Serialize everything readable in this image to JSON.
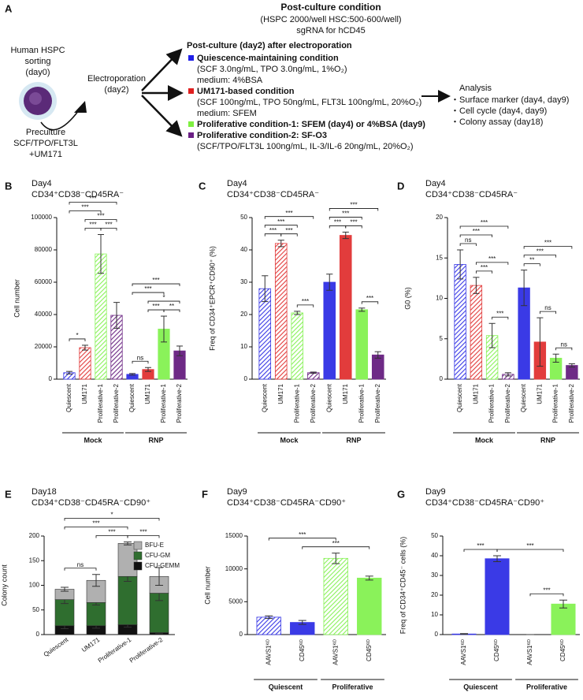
{
  "panel_a": {
    "label": "A",
    "header": [
      "Post-culture condition",
      "(HSPC 2000/well HSC:500-600/well)",
      "sgRNA for hCD45"
    ],
    "sorting": [
      "Human HSPC",
      "sorting",
      "(day0)"
    ],
    "electroporation": [
      "Electroporation",
      "(day2)"
    ],
    "preculture": [
      "Preculture",
      "SCF/TPO/FLT3L",
      "+UM171"
    ],
    "conditions_title": "Post-culture (day2) after electroporation",
    "conditions": [
      {
        "name": "Quiescence-maintaining condition",
        "color": "#2020e8",
        "details": [
          "(SCF 3.0ng/mL, TPO 3.0ng/mL, 1%O₂)",
          "medium: 4%BSA"
        ]
      },
      {
        "name": "UM171-based condition",
        "color": "#e02020",
        "details": [
          "(SCF 100ng/mL, TPO 50ng/mL, FLT3L 100ng/mL, 20%O₂)",
          "medium: SFEM"
        ]
      },
      {
        "name": "Proliferative condition-1: SFEM (day4) or 4%BSA (day9)",
        "color": "#7ef040"
      },
      {
        "name": "Proliferative condition-2: SF-O3",
        "color": "#6a1f84",
        "details": [
          "(SCF/TPO/FLT3L 100ng/mL, IL-3/IL-6 20ng/mL, 20%O₂)"
        ]
      }
    ],
    "analysis_title": "Analysis",
    "analysis": [
      "・Surface marker (day4, day9)",
      "・Cell cycle (day4, day9)",
      "・Colony assay (day18)"
    ]
  },
  "chart_data": [
    {
      "type": "bar",
      "panel": "B",
      "title": "Day4",
      "subtitle": "CD34⁺CD38⁻CD45RA⁻",
      "ylabel": "Cell number",
      "categories": [
        "Quiescent",
        "UM171",
        "Proliferative-1",
        "Proliferative-2",
        "Quiescent",
        "UM171",
        "Proliferative-1",
        "Proliferative-2"
      ],
      "values": [
        4000,
        19500,
        77500,
        39500,
        3000,
        6000,
        31000,
        17500
      ],
      "errors": [
        800,
        1500,
        12000,
        8000,
        500,
        1200,
        8000,
        3000
      ],
      "colors": [
        "#3a3ae6",
        "#e23c3c",
        "#8af25a",
        "#6e2a86",
        "#3a3ae6",
        "#e23c3c",
        "#8af25a",
        "#6e2a86"
      ],
      "hatch": [
        true,
        true,
        true,
        true,
        false,
        false,
        false,
        false
      ],
      "ylim": [
        0,
        100000
      ],
      "yticks": [
        0,
        20000,
        40000,
        60000,
        80000,
        100000
      ],
      "groups": [
        {
          "name": "Mock",
          "from": 0,
          "to": 3
        },
        {
          "name": "RNP",
          "from": 4,
          "to": 7
        }
      ],
      "brackets": [
        {
          "from": 0,
          "to": 1,
          "label": "*"
        },
        {
          "from": 1,
          "to": 2,
          "label": "***"
        },
        {
          "from": 2,
          "to": 3,
          "label": "***"
        },
        {
          "from": 1,
          "to": 3,
          "label": "***"
        },
        {
          "from": 0,
          "to": 2,
          "label": "***"
        },
        {
          "from": 0,
          "to": 3,
          "label": "***"
        },
        {
          "from": 4,
          "to": 5,
          "label": "ns"
        },
        {
          "from": 5,
          "to": 6,
          "label": "***"
        },
        {
          "from": 6,
          "to": 7,
          "label": "**"
        },
        {
          "from": 5,
          "to": 7,
          "label": "*"
        },
        {
          "from": 4,
          "to": 6,
          "label": "***"
        },
        {
          "from": 4,
          "to": 7,
          "label": "***"
        }
      ]
    },
    {
      "type": "bar",
      "panel": "C",
      "title": "Day4",
      "subtitle": "CD34⁺CD38⁻CD45RA⁻",
      "ylabel": "Freq of CD34⁺EPCR⁺CD90⁺ (%)",
      "categories": [
        "Quiescent",
        "UM171",
        "Proliferative-1",
        "Proliferative-2",
        "Quiescent",
        "UM171",
        "Proliferative-1",
        "Proliferative-2"
      ],
      "values": [
        28,
        42,
        20.5,
        2,
        30,
        44.5,
        21.5,
        7.5
      ],
      "errors": [
        4,
        1,
        0.5,
        0.2,
        2.5,
        1,
        0.5,
        1
      ],
      "colors": [
        "#3a3ae6",
        "#e23c3c",
        "#8af25a",
        "#6e2a86",
        "#3a3ae6",
        "#e23c3c",
        "#8af25a",
        "#6e2a86"
      ],
      "hatch": [
        true,
        true,
        true,
        true,
        false,
        false,
        false,
        false
      ],
      "ylim": [
        0,
        50
      ],
      "yticks": [
        0,
        10,
        20,
        30,
        40,
        50
      ],
      "groups": [
        {
          "name": "Mock",
          "from": 0,
          "to": 3
        },
        {
          "name": "RNP",
          "from": 4,
          "to": 7
        }
      ],
      "brackets": [
        {
          "from": 2,
          "to": 3,
          "label": "***"
        },
        {
          "from": 0,
          "to": 1,
          "label": "***"
        },
        {
          "from": 1,
          "to": 2,
          "label": "***"
        },
        {
          "from": 0,
          "to": 2,
          "label": "***"
        },
        {
          "from": 0,
          "to": 3,
          "label": "***"
        },
        {
          "from": 6,
          "to": 7,
          "label": "***"
        },
        {
          "from": 4,
          "to": 5,
          "label": "***"
        },
        {
          "from": 5,
          "to": 6,
          "label": "***"
        },
        {
          "from": 4,
          "to": 6,
          "label": "***"
        },
        {
          "from": 4,
          "to": 7,
          "label": "***"
        }
      ]
    },
    {
      "type": "bar",
      "panel": "D",
      "title": "Day4",
      "subtitle": "CD34⁺CD38⁻CD45RA⁻",
      "ylabel": "G0 (%)",
      "categories": [
        "Quiescent",
        "UM171",
        "Proliferative-1",
        "Proliferative-2",
        "Quiescent",
        "UM171",
        "Proliferative-1",
        "Proliferative-2"
      ],
      "values": [
        14.2,
        11.6,
        5.4,
        0.6,
        11.3,
        4.6,
        2.6,
        1.7
      ],
      "errors": [
        1.8,
        1,
        1.5,
        0.2,
        2.2,
        3,
        0.5,
        0.2
      ],
      "colors": [
        "#3a3ae6",
        "#e23c3c",
        "#8af25a",
        "#6e2a86",
        "#3a3ae6",
        "#e23c3c",
        "#8af25a",
        "#6e2a86"
      ],
      "hatch": [
        true,
        true,
        true,
        true,
        false,
        false,
        false,
        false
      ],
      "ylim": [
        0,
        20
      ],
      "yticks": [
        0,
        5,
        10,
        15,
        20
      ],
      "groups": [
        {
          "name": "Mock",
          "from": 0,
          "to": 3
        },
        {
          "name": "RNP",
          "from": 4,
          "to": 7
        }
      ],
      "brackets": [
        {
          "from": 2,
          "to": 3,
          "label": "***"
        },
        {
          "from": 1,
          "to": 2,
          "label": "***"
        },
        {
          "from": 1,
          "to": 3,
          "label": "***"
        },
        {
          "from": 0,
          "to": 1,
          "label": "ns"
        },
        {
          "from": 0,
          "to": 2,
          "label": "***"
        },
        {
          "from": 0,
          "to": 3,
          "label": "***"
        },
        {
          "from": 6,
          "to": 7,
          "label": "ns"
        },
        {
          "from": 5,
          "to": 6,
          "label": "ns"
        },
        {
          "from": 4,
          "to": 5,
          "label": "**"
        },
        {
          "from": 4,
          "to": 6,
          "label": "***"
        },
        {
          "from": 4,
          "to": 7,
          "label": "***"
        }
      ]
    },
    {
      "type": "stacked_bar",
      "panel": "E",
      "title": "Day18",
      "subtitle": "CD34⁺CD38⁻CD45RA⁻CD90⁺",
      "ylabel": "Colony count",
      "categories": [
        "Quiescent",
        "UM171",
        "Proliferative-1",
        "Proliferative-2"
      ],
      "series": [
        {
          "name": "CFU-GEMM",
          "color": "#111111",
          "values": [
            18,
            18,
            20,
            4
          ],
          "errors": [
            6,
            5,
            5,
            2
          ]
        },
        {
          "name": "CFU-GM",
          "color": "#2f6e2f",
          "values": [
            53,
            47,
            98,
            80
          ],
          "errors": [
            8,
            5,
            10,
            15
          ]
        },
        {
          "name": "BFU-E",
          "color": "#b0b0b0",
          "values": [
            21,
            45,
            67,
            34
          ],
          "errors": [
            4,
            12,
            3,
            18
          ]
        }
      ],
      "ylim": [
        0,
        200
      ],
      "yticks": [
        0,
        50,
        100,
        150,
        200
      ],
      "legend": "upper right",
      "brackets": [
        {
          "from": 0,
          "to": 1,
          "label": "ns"
        },
        {
          "from": 1,
          "to": 2,
          "label": "***"
        },
        {
          "from": 2,
          "to": 3,
          "label": "***"
        },
        {
          "from": 0,
          "to": 2,
          "label": "***"
        },
        {
          "from": 0,
          "to": 3,
          "label": "*"
        }
      ]
    },
    {
      "type": "bar",
      "panel": "F",
      "title": "Day9",
      "subtitle": "CD34⁺CD38⁻CD45RA⁻CD90⁺",
      "ylabel": "Cell number",
      "categories": [
        "AAVS1ᴷᴼ",
        "CD45ᴷᴼ",
        "AAVS1ᴷᴼ",
        "CD45ᴷᴼ"
      ],
      "values": [
        2650,
        1850,
        11600,
        8600
      ],
      "errors": [
        200,
        300,
        800,
        300
      ],
      "colors": [
        "#3a3ae6",
        "#3a3ae6",
        "#8af25a",
        "#8af25a"
      ],
      "hatch": [
        true,
        false,
        true,
        false
      ],
      "ylim": [
        0,
        15000
      ],
      "yticks": [
        0,
        5000,
        10000,
        15000
      ],
      "groups": [
        {
          "name": "Quiescent",
          "from": 0,
          "to": 1
        },
        {
          "name": "Proliferative",
          "from": 2,
          "to": 3
        }
      ],
      "brackets": [
        {
          "from": 1,
          "to": 3,
          "label": "***"
        },
        {
          "from": 0,
          "to": 2,
          "label": "***"
        }
      ]
    },
    {
      "type": "bar",
      "panel": "G",
      "title": "Day9",
      "subtitle": "CD34⁺CD38⁻CD45RA⁻CD90⁺",
      "ylabel": "Freq of CD34⁺CD45⁻ cells (%)",
      "categories": [
        "AAVS1ᴷᴼ",
        "CD45ᴷᴼ",
        "AAVS1ᴷᴼ",
        "CD45ᴷᴼ"
      ],
      "values": [
        0.3,
        38.5,
        0,
        15.5
      ],
      "errors": [
        0.2,
        1.5,
        0,
        2
      ],
      "colors": [
        "#3a3ae6",
        "#3a3ae6",
        "#8af25a",
        "#8af25a"
      ],
      "hatch": [
        true,
        false,
        true,
        false
      ],
      "ylim": [
        0,
        50
      ],
      "yticks": [
        0,
        10,
        20,
        30,
        40,
        50
      ],
      "groups": [
        {
          "name": "Quiescent",
          "from": 0,
          "to": 1
        },
        {
          "name": "Proliferative",
          "from": 2,
          "to": 3
        }
      ],
      "brackets": [
        {
          "from": 0,
          "to": 1,
          "label": "***"
        },
        {
          "from": 2,
          "to": 3,
          "label": "***"
        },
        {
          "from": 1,
          "to": 3,
          "label": "***"
        }
      ]
    }
  ]
}
